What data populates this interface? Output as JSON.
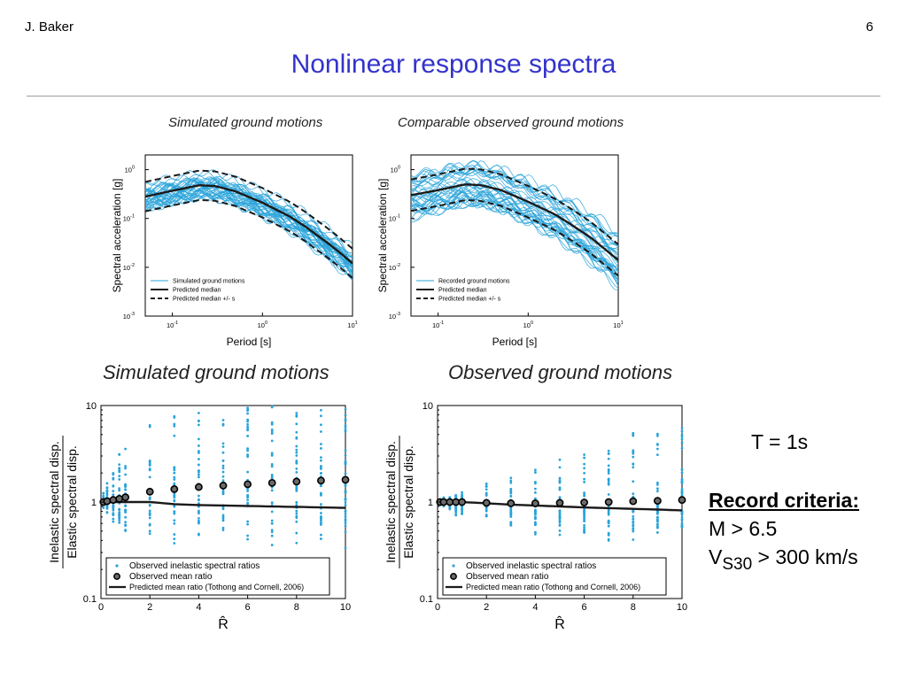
{
  "header": {
    "author": "J. Baker",
    "page_number": "6",
    "title": "Nonlinear response spectra"
  },
  "captions": {
    "top_left": "Simulated ground motions",
    "top_right": "Comparable observed ground motions",
    "bottom_left": "Simulated ground motions",
    "bottom_right": "Observed ground motions"
  },
  "side_panel": {
    "period": "T = 1s",
    "criteria_title": "Record criteria:",
    "magnitude": "M > 6.5",
    "vs30_v": "V",
    "vs30_sub": "S30",
    "vs30_rest": " > 300 km/s"
  },
  "colors": {
    "title": "#3333cc",
    "series": "#29a3d9",
    "median": "#1a1a1a"
  },
  "chart_data": [
    {
      "id": "spectra-simulated",
      "type": "line",
      "scale": "loglog",
      "xlabel": "Period [s]",
      "ylabel": "Spectral acceleration [g]",
      "xlim": [
        0.05,
        10
      ],
      "ylim": [
        0.001,
        2
      ],
      "xticks": [
        {
          "v": 0.1,
          "b": "10",
          "e": "-1"
        },
        {
          "v": 1,
          "b": "10",
          "e": "0"
        },
        {
          "v": 10,
          "b": "10",
          "e": "1"
        }
      ],
      "yticks": [
        {
          "v": 0.001,
          "b": "10",
          "e": "-3"
        },
        {
          "v": 0.01,
          "b": "10",
          "e": "-2"
        },
        {
          "v": 0.1,
          "b": "10",
          "e": "-1"
        },
        {
          "v": 1,
          "b": "10",
          "e": "0"
        }
      ],
      "legend": [
        "Simulated ground motions",
        "Predicted median",
        "Predicted median +/-   s"
      ],
      "median": {
        "x": [
          0.05,
          0.1,
          0.2,
          0.3,
          0.5,
          1,
          2,
          3,
          5,
          7,
          10
        ],
        "y": [
          0.28,
          0.37,
          0.48,
          0.46,
          0.36,
          0.21,
          0.11,
          0.068,
          0.034,
          0.021,
          0.012
        ]
      },
      "sigma_factor": 2.0,
      "sample_count": 40,
      "sample_spread": 0.55,
      "seed": 7
    },
    {
      "id": "spectra-observed",
      "type": "line",
      "scale": "loglog",
      "xlabel": "Period [s]",
      "ylabel": "Spectral acceleration [g]",
      "xlim": [
        0.05,
        10
      ],
      "ylim": [
        0.001,
        2
      ],
      "xticks": [
        {
          "v": 0.1,
          "b": "10",
          "e": "-1"
        },
        {
          "v": 1,
          "b": "10",
          "e": "0"
        },
        {
          "v": 10,
          "b": "10",
          "e": "1"
        }
      ],
      "yticks": [
        {
          "v": 0.001,
          "b": "10",
          "e": "-3"
        },
        {
          "v": 0.01,
          "b": "10",
          "e": "-2"
        },
        {
          "v": 0.1,
          "b": "10",
          "e": "-1"
        },
        {
          "v": 1,
          "b": "10",
          "e": "0"
        }
      ],
      "legend": [
        "Recorded ground motions",
        "Predicted median",
        "Predicted median +/-   s"
      ],
      "median": {
        "x": [
          0.05,
          0.1,
          0.2,
          0.3,
          0.5,
          1,
          2,
          3,
          5,
          7,
          10
        ],
        "y": [
          0.3,
          0.38,
          0.5,
          0.48,
          0.38,
          0.22,
          0.12,
          0.075,
          0.04,
          0.024,
          0.014
        ]
      },
      "sigma_factor": 2.1,
      "sample_count": 40,
      "sample_spread": 0.85,
      "seed": 19
    },
    {
      "id": "ratio-simulated",
      "type": "scatter",
      "scale": "semilogy",
      "xlabel": "R̂",
      "ylabel_top": "Inelastic spectral disp.",
      "ylabel_bottom": "Elastic spectral disp.",
      "xlim": [
        0,
        10
      ],
      "ylim": [
        0.1,
        10
      ],
      "xticks": [
        0,
        2,
        4,
        6,
        8,
        10
      ],
      "yticks": [
        {
          "v": 0.1,
          "label": "0.1"
        },
        {
          "v": 1,
          "label": "1"
        },
        {
          "v": 10,
          "label": "10"
        }
      ],
      "r_values": [
        0.1,
        0.25,
        0.5,
        0.75,
        1,
        2,
        3,
        4,
        5,
        6,
        7,
        8,
        9,
        10
      ],
      "mean_ratio": [
        1.0,
        1.02,
        1.05,
        1.08,
        1.12,
        1.28,
        1.36,
        1.43,
        1.48,
        1.53,
        1.58,
        1.63,
        1.67,
        1.7
      ],
      "predicted": {
        "x": [
          0,
          1,
          2,
          3,
          4,
          6,
          8,
          10
        ],
        "y": [
          1.0,
          1.0,
          1.0,
          0.95,
          0.93,
          0.91,
          0.89,
          0.87
        ]
      },
      "scatter_range": {
        "low": [
          0.85,
          0.72,
          0.6,
          0.5,
          0.45,
          0.38,
          0.36,
          0.34,
          0.32,
          0.3,
          0.3,
          0.3,
          0.3,
          0.3
        ],
        "high": [
          1.25,
          1.6,
          2.2,
          3.2,
          4.5,
          7,
          8,
          8.5,
          9,
          9.5,
          10,
          10,
          10,
          10
        ]
      },
      "legend": [
        "Observed inelastic spectral ratios",
        "Observed mean ratio",
        "Predicted mean ratio (Tothong and Cornell, 2006)"
      ],
      "seed": 31
    },
    {
      "id": "ratio-observed",
      "type": "scatter",
      "scale": "semilogy",
      "xlabel": "R̂",
      "ylabel_top": "Inelastic spectral disp.",
      "ylabel_bottom": "Elastic spectral disp.",
      "xlim": [
        0,
        10
      ],
      "ylim": [
        0.1,
        10
      ],
      "xticks": [
        0,
        2,
        4,
        6,
        8,
        10
      ],
      "yticks": [
        {
          "v": 0.1,
          "label": "0.1"
        },
        {
          "v": 1,
          "label": "1"
        },
        {
          "v": 10,
          "label": "10"
        }
      ],
      "r_values": [
        0.1,
        0.25,
        0.5,
        0.75,
        1,
        2,
        3,
        4,
        5,
        6,
        7,
        8,
        9,
        10
      ],
      "mean_ratio": [
        1.0,
        1.0,
        1.0,
        1.0,
        1.0,
        0.98,
        0.97,
        0.97,
        0.98,
        0.99,
        1.0,
        1.02,
        1.03,
        1.05
      ],
      "predicted": {
        "x": [
          0,
          1,
          2,
          3,
          4,
          6,
          8,
          10
        ],
        "y": [
          1.0,
          1.0,
          0.97,
          0.94,
          0.92,
          0.88,
          0.85,
          0.82
        ]
      },
      "scatter_range": {
        "low": [
          0.92,
          0.88,
          0.82,
          0.72,
          0.68,
          0.55,
          0.5,
          0.45,
          0.42,
          0.4,
          0.38,
          0.36,
          0.35,
          0.35
        ],
        "high": [
          1.08,
          1.12,
          1.15,
          1.2,
          1.3,
          1.6,
          2.0,
          2.3,
          2.8,
          3.3,
          3.8,
          5.2,
          6.0,
          6.5
        ]
      },
      "legend": [
        "Observed inelastic spectral ratios",
        "Observed mean ratio",
        "Predicted mean ratio (Tothong and Cornell, 2006)"
      ],
      "seed": 47
    }
  ]
}
